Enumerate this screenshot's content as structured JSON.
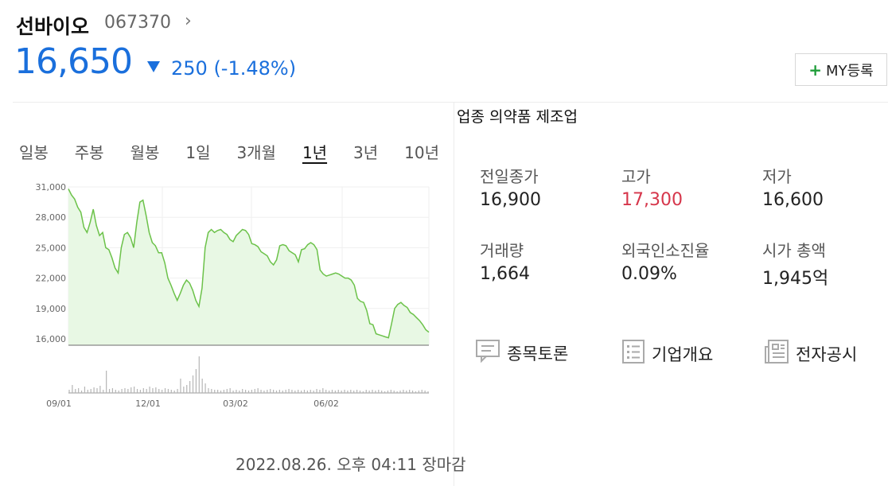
{
  "header": {
    "name": "선바이오",
    "code": "067370",
    "price": "16,650",
    "change": "250 (-1.48%)",
    "my_button": "MY등록",
    "color_down": "#1a6fdc",
    "color_up": "#d6364b"
  },
  "industry": "업종 의약품 제조업",
  "tabs": [
    {
      "label": "일봉",
      "active": false
    },
    {
      "label": "주봉",
      "active": false
    },
    {
      "label": "월봉",
      "active": false
    },
    {
      "label": "1일",
      "active": false
    },
    {
      "label": "3개월",
      "active": false
    },
    {
      "label": "1년",
      "active": true
    },
    {
      "label": "3년",
      "active": false
    },
    {
      "label": "10년",
      "active": false
    }
  ],
  "stats": [
    {
      "label": "전일종가",
      "value": "16,900"
    },
    {
      "label": "고가",
      "value": "17,300",
      "up": true
    },
    {
      "label": "저가",
      "value": "16,600"
    },
    {
      "label": "거래량",
      "value": "1,664"
    },
    {
      "label": "외국인소진율",
      "value": "0.09%"
    },
    {
      "label": "시가 총액",
      "value": "1,945억"
    }
  ],
  "links": [
    {
      "label": "종목토론",
      "icon": "comment-icon"
    },
    {
      "label": "기업개요",
      "icon": "list-document-icon"
    },
    {
      "label": "전자공시",
      "icon": "newspaper-icon"
    }
  ],
  "updated": "2022.08.26. 오후 04:11 장마감",
  "chart_data": {
    "type": "area",
    "ylim": [
      16000,
      31000
    ],
    "yticks": [
      "31,000",
      "28,000",
      "25,000",
      "22,000",
      "19,000",
      "16,000"
    ],
    "xticks": [
      "09/01",
      "12/01",
      "03/02",
      "06/02"
    ],
    "line_color": "#6cc24a",
    "fill_color": "#e8f8e4",
    "values": [
      30800,
      30200,
      29800,
      29000,
      28500,
      27000,
      26500,
      27500,
      28800,
      27200,
      26200,
      26500,
      25000,
      24800,
      24000,
      23000,
      22500,
      25000,
      26300,
      26500,
      26000,
      25000,
      27500,
      29500,
      29700,
      28200,
      26500,
      25500,
      25200,
      24500,
      24500,
      23500,
      22000,
      21300,
      20500,
      19800,
      20500,
      21300,
      21800,
      21500,
      20800,
      19800,
      19200,
      21000,
      25000,
      26500,
      26800,
      26500,
      26700,
      26800,
      26500,
      26300,
      25800,
      25600,
      26200,
      26500,
      26800,
      26700,
      26300,
      25400,
      25300,
      25100,
      24600,
      24400,
      24200,
      23600,
      23300,
      23800,
      25200,
      25300,
      25200,
      24700,
      24500,
      24300,
      23600,
      24800,
      24900,
      25300,
      25500,
      25300,
      24800,
      22800,
      22400,
      22200,
      22300,
      22400,
      22500,
      22400,
      22200,
      22000,
      22000,
      21800,
      21300,
      20000,
      19700,
      19600,
      18800,
      17500,
      17400,
      16500,
      16400,
      16300,
      16200,
      16100,
      17500,
      19000,
      19400,
      19600,
      19300,
      19100,
      18600,
      18400,
      18100,
      17800,
      17400,
      16900,
      16650
    ]
  }
}
